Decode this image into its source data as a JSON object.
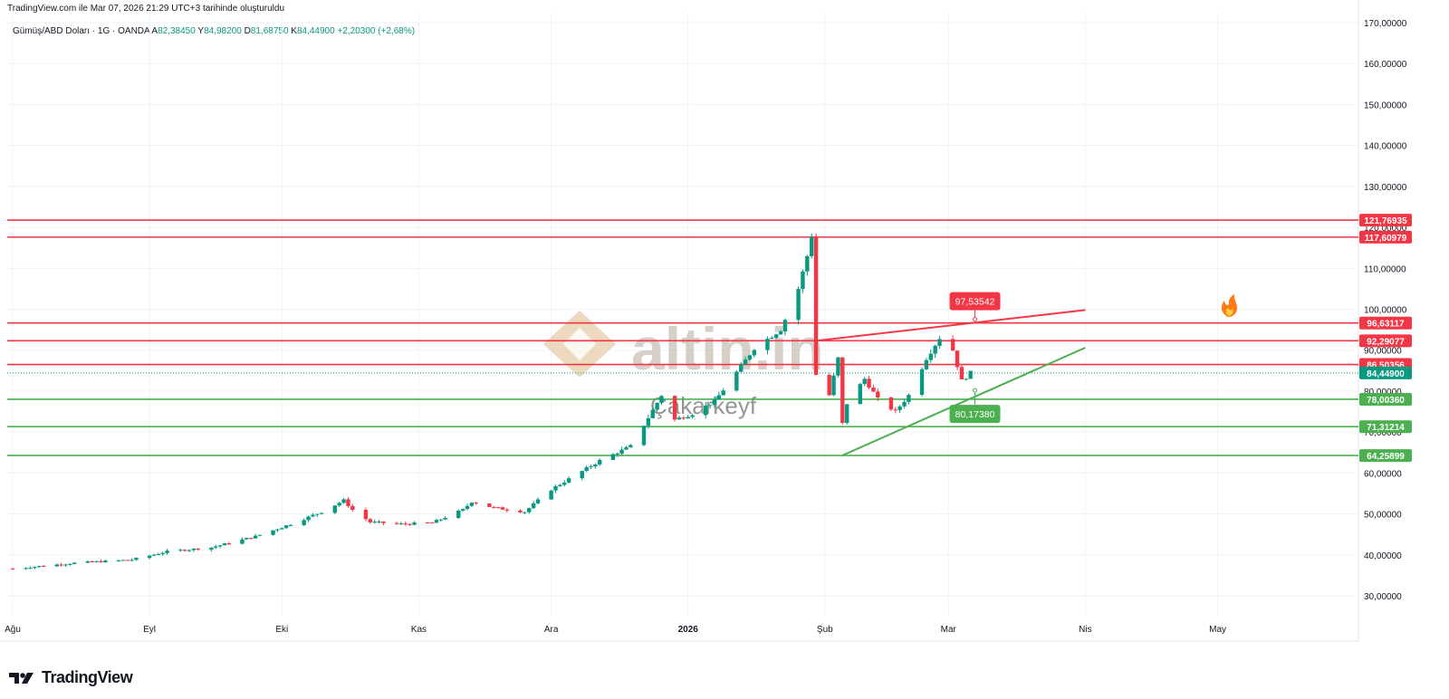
{
  "header": {
    "source": "TradingView.com ile Mar 07, 2026 21:29 UTC+3 tarihinde oluşturuldu",
    "symbol": "Gümüş/ABD Doları · 1G · OANDA",
    "o_label": "A",
    "o": "82,38450",
    "h_label": "Y",
    "h": "84,98200",
    "l_label": "D",
    "l": "81,68750",
    "c_label": "K",
    "c": "84,44900",
    "change": "+2,20300 (+2,68%)"
  },
  "footer": {
    "brand": "TradingView"
  },
  "watermark": {
    "brand": "altin.in",
    "sub": "Çakarkeyf"
  },
  "colors": {
    "up": "#089981",
    "down": "#f23645",
    "res": "#f23645",
    "sup": "#4caf50",
    "wm": "#b6ab9c",
    "wm_logo": "#e6c9a4"
  },
  "chart_data": {
    "type": "candlestick",
    "title": "Gümüş/ABD Doları · 1G · OANDA",
    "ylim": [
      25,
      172
    ],
    "yticks": [
      30,
      40,
      50,
      60,
      70,
      80,
      90,
      100,
      110,
      120,
      130,
      140,
      150,
      160,
      170
    ],
    "ytick_labels": [
      "30,00000",
      "40,00000",
      "50,00000",
      "60,00000",
      "70,00000",
      "80,00000",
      "90,00000",
      "100,00000",
      "110,00000",
      "120,00000",
      "130,00000",
      "140,00000",
      "150,00000",
      "160,00000",
      "170,00000"
    ],
    "xticks": [
      {
        "label": "Ağu",
        "date": "2025-08-01"
      },
      {
        "label": "Eyl",
        "date": "2025-09-01"
      },
      {
        "label": "Eki",
        "date": "2025-10-01"
      },
      {
        "label": "Kas",
        "date": "2025-11-01"
      },
      {
        "label": "Ara",
        "date": "2025-12-01"
      },
      {
        "label": "2026",
        "date": "2026-01-01",
        "bold": true
      },
      {
        "label": "Şub",
        "date": "2026-02-01"
      },
      {
        "label": "Mar",
        "date": "2026-03-01"
      },
      {
        "label": "Nis",
        "date": "2026-04-01"
      },
      {
        "label": "May",
        "date": "2026-05-01"
      }
    ],
    "first_date": "2025-08-01",
    "close_anchors": [
      [
        "2025-08-01",
        36.6
      ],
      [
        "2025-08-15",
        38.0
      ],
      [
        "2025-08-28",
        38.8
      ],
      [
        "2025-09-05",
        40.8
      ],
      [
        "2025-09-15",
        41.8
      ],
      [
        "2025-09-25",
        44.5
      ],
      [
        "2025-10-03",
        47.5
      ],
      [
        "2025-10-10",
        50.5
      ],
      [
        "2025-10-15",
        53.3
      ],
      [
        "2025-10-17",
        51.0
      ],
      [
        "2025-10-21",
        48.0
      ],
      [
        "2025-10-28",
        47.5
      ],
      [
        "2025-11-04",
        47.8
      ],
      [
        "2025-11-11",
        51.0
      ],
      [
        "2025-11-13",
        53.0
      ],
      [
        "2025-11-18",
        51.5
      ],
      [
        "2025-11-25",
        50.5
      ],
      [
        "2025-12-01",
        56.0
      ],
      [
        "2025-12-05",
        58.5
      ],
      [
        "2025-12-12",
        63.0
      ],
      [
        "2025-12-19",
        66.5
      ],
      [
        "2025-12-23",
        73.5
      ],
      [
        "2025-12-26",
        79.0
      ],
      [
        "2025-12-29",
        73.0
      ],
      [
        "2026-01-02",
        74.5
      ],
      [
        "2026-01-07",
        77.5
      ],
      [
        "2026-01-13",
        86.0
      ],
      [
        "2026-01-16",
        90.5
      ],
      [
        "2026-01-22",
        95.0
      ],
      [
        "2026-01-26",
        105.0
      ],
      [
        "2026-01-28",
        113.0
      ],
      [
        "2026-01-29",
        118.0
      ],
      [
        "2026-01-30",
        84.0
      ],
      [
        "2026-02-02",
        79.0
      ],
      [
        "2026-02-04",
        88.0
      ],
      [
        "2026-02-05",
        72.0
      ],
      [
        "2026-02-06",
        77.0
      ],
      [
        "2026-02-10",
        83.0
      ],
      [
        "2026-02-13",
        78.0
      ],
      [
        "2026-02-17",
        75.0
      ],
      [
        "2026-02-20",
        79.0
      ],
      [
        "2026-02-24",
        88.0
      ],
      [
        "2026-02-27",
        93.0
      ],
      [
        "2026-03-02",
        90.0
      ],
      [
        "2026-03-04",
        82.5
      ],
      [
        "2026-03-06",
        84.449
      ]
    ],
    "current_price": 84.449,
    "current_price_label": "84,44900",
    "resistance_levels": [
      {
        "value": 121.76935,
        "label": "121,76935"
      },
      {
        "value": 117.60979,
        "label": "117,60979"
      },
      {
        "value": 96.63117,
        "label": "96,63117"
      },
      {
        "value": 92.29077,
        "label": "92,29077"
      },
      {
        "value": 86.50356,
        "label": "86,50356"
      }
    ],
    "support_levels": [
      {
        "value": 78.0036,
        "label": "78,00360"
      },
      {
        "value": 71.31214,
        "label": "71,31214"
      },
      {
        "value": 64.25899,
        "label": "64,25899"
      }
    ],
    "trendlines": [
      {
        "name": "resistance",
        "color": "res",
        "from": [
          "2026-01-30",
          92.3
        ],
        "to": [
          "2026-04-01",
          99.8
        ]
      },
      {
        "name": "support",
        "color": "sup",
        "from": [
          "2026-02-05",
          64.3
        ],
        "to": [
          "2026-04-01",
          90.6
        ]
      }
    ],
    "callouts": [
      {
        "value": 97.53542,
        "label": "97,53542",
        "date": "2026-03-07",
        "color": "res",
        "position": "above"
      },
      {
        "value": 80.1738,
        "label": "80,17380",
        "date": "2026-03-07",
        "color": "sup",
        "position": "below"
      }
    ]
  }
}
